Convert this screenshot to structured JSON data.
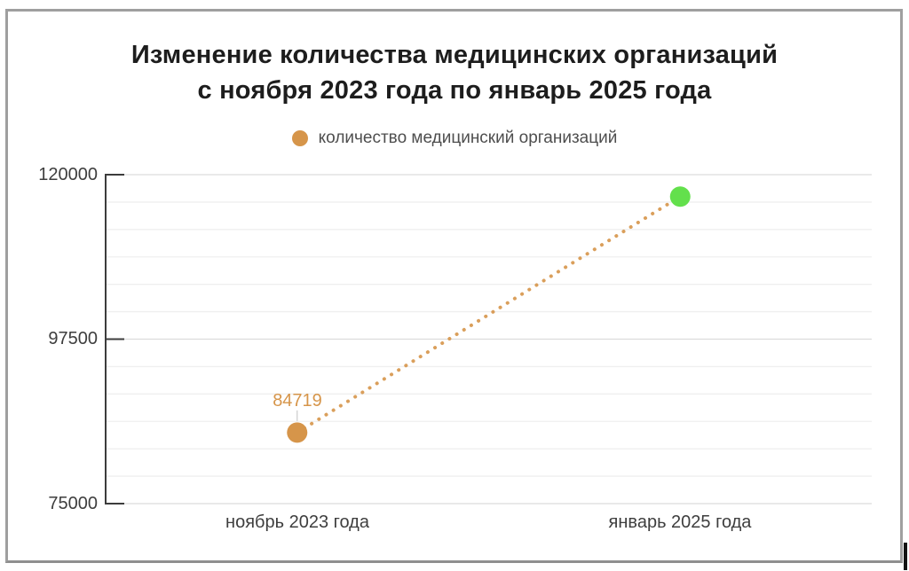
{
  "title": {
    "line1": "Изменение количества медицинских организаций",
    "line2": "с ноября 2023 года по январь 2025 года"
  },
  "legend": {
    "label": "количество медицинский организаций"
  },
  "y_axis": {
    "ticks": [
      {
        "value": 120000,
        "label": "120000"
      },
      {
        "value": 97500,
        "label": "97500"
      },
      {
        "value": 75000,
        "label": "75000"
      }
    ]
  },
  "x_axis": {
    "labels": [
      "ноябрь 2023 года",
      "январь 2025 года"
    ]
  },
  "annotation": {
    "point1_label": "84719"
  },
  "colors": {
    "orange": "#d6954a",
    "green": "#63e04c",
    "axis": "#3c3c3c",
    "grid_minor": "#efefef",
    "grid_major": "#dcdcdc",
    "stem": "#cccccc",
    "frame_border": "#9f9f9f"
  },
  "chart_data": {
    "type": "line",
    "title": "Изменение количества медицинских организаций с ноября 2023 года по январь 2025 года",
    "categories": [
      "ноябрь 2023 года",
      "январь 2025 года"
    ],
    "series": [
      {
        "name": "количество медицинский организаций",
        "values": [
          84719,
          117000
        ],
        "value_notes": [
          "labeled on chart as 84719",
          "unlabeled, estimated from position vs gridlines"
        ],
        "point_colors": [
          "#d6954a",
          "#63e04c"
        ],
        "line_color": "#d6954a",
        "line_style": "dotted",
        "data_labels": [
          "84719",
          null
        ]
      }
    ],
    "xlabel": "",
    "ylabel": "",
    "ylim": [
      75000,
      120000
    ],
    "y_ticks": [
      120000,
      97500,
      75000
    ],
    "y_minor_step": 3750,
    "grid": true,
    "legend_position": "top"
  }
}
